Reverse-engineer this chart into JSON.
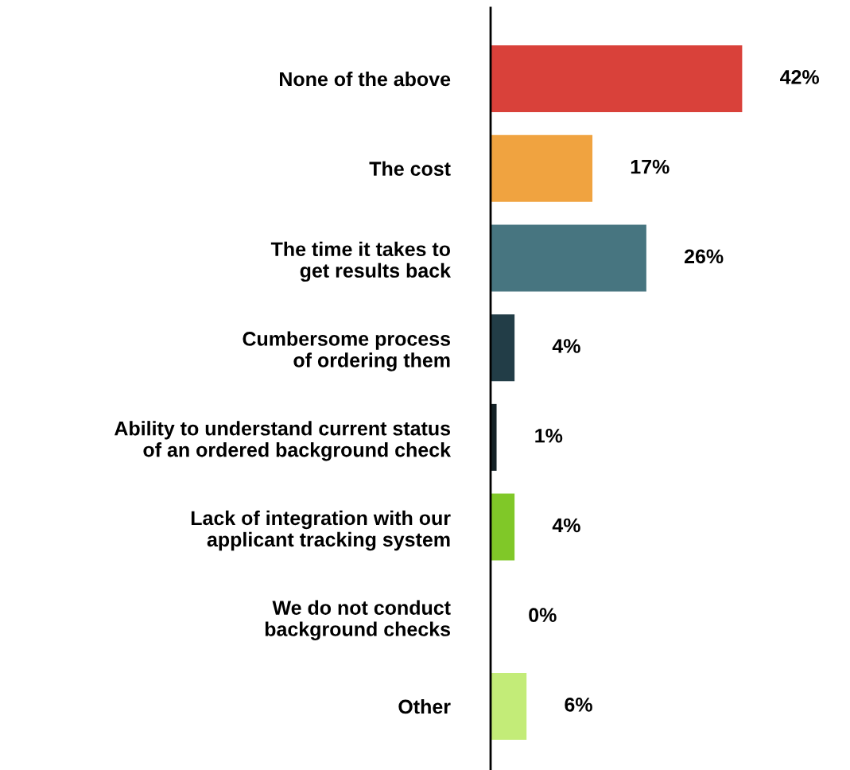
{
  "chart_data": {
    "type": "bar",
    "orientation": "horizontal",
    "categories": [
      "None of the above",
      "The cost",
      "The time it takes to\nget results back",
      "Cumbersome process\nof ordering them",
      "Ability to understand current status\nof an ordered background check",
      "Lack of integration with our\napplicant tracking system",
      "We do not conduct\nbackground checks",
      "Other"
    ],
    "values": [
      42,
      17,
      26,
      4,
      1,
      4,
      0,
      6
    ],
    "value_labels": [
      "42%",
      "17%",
      "26%",
      "4%",
      "1%",
      "4%",
      "0%",
      "6%"
    ],
    "colors": [
      "#d9413a",
      "#f0a340",
      "#477580",
      "#223d47",
      "#142126",
      "#80c828",
      "#c3ec78",
      "#c3ec78"
    ],
    "tick_labels": "y",
    "grid": false,
    "legend": false
  }
}
